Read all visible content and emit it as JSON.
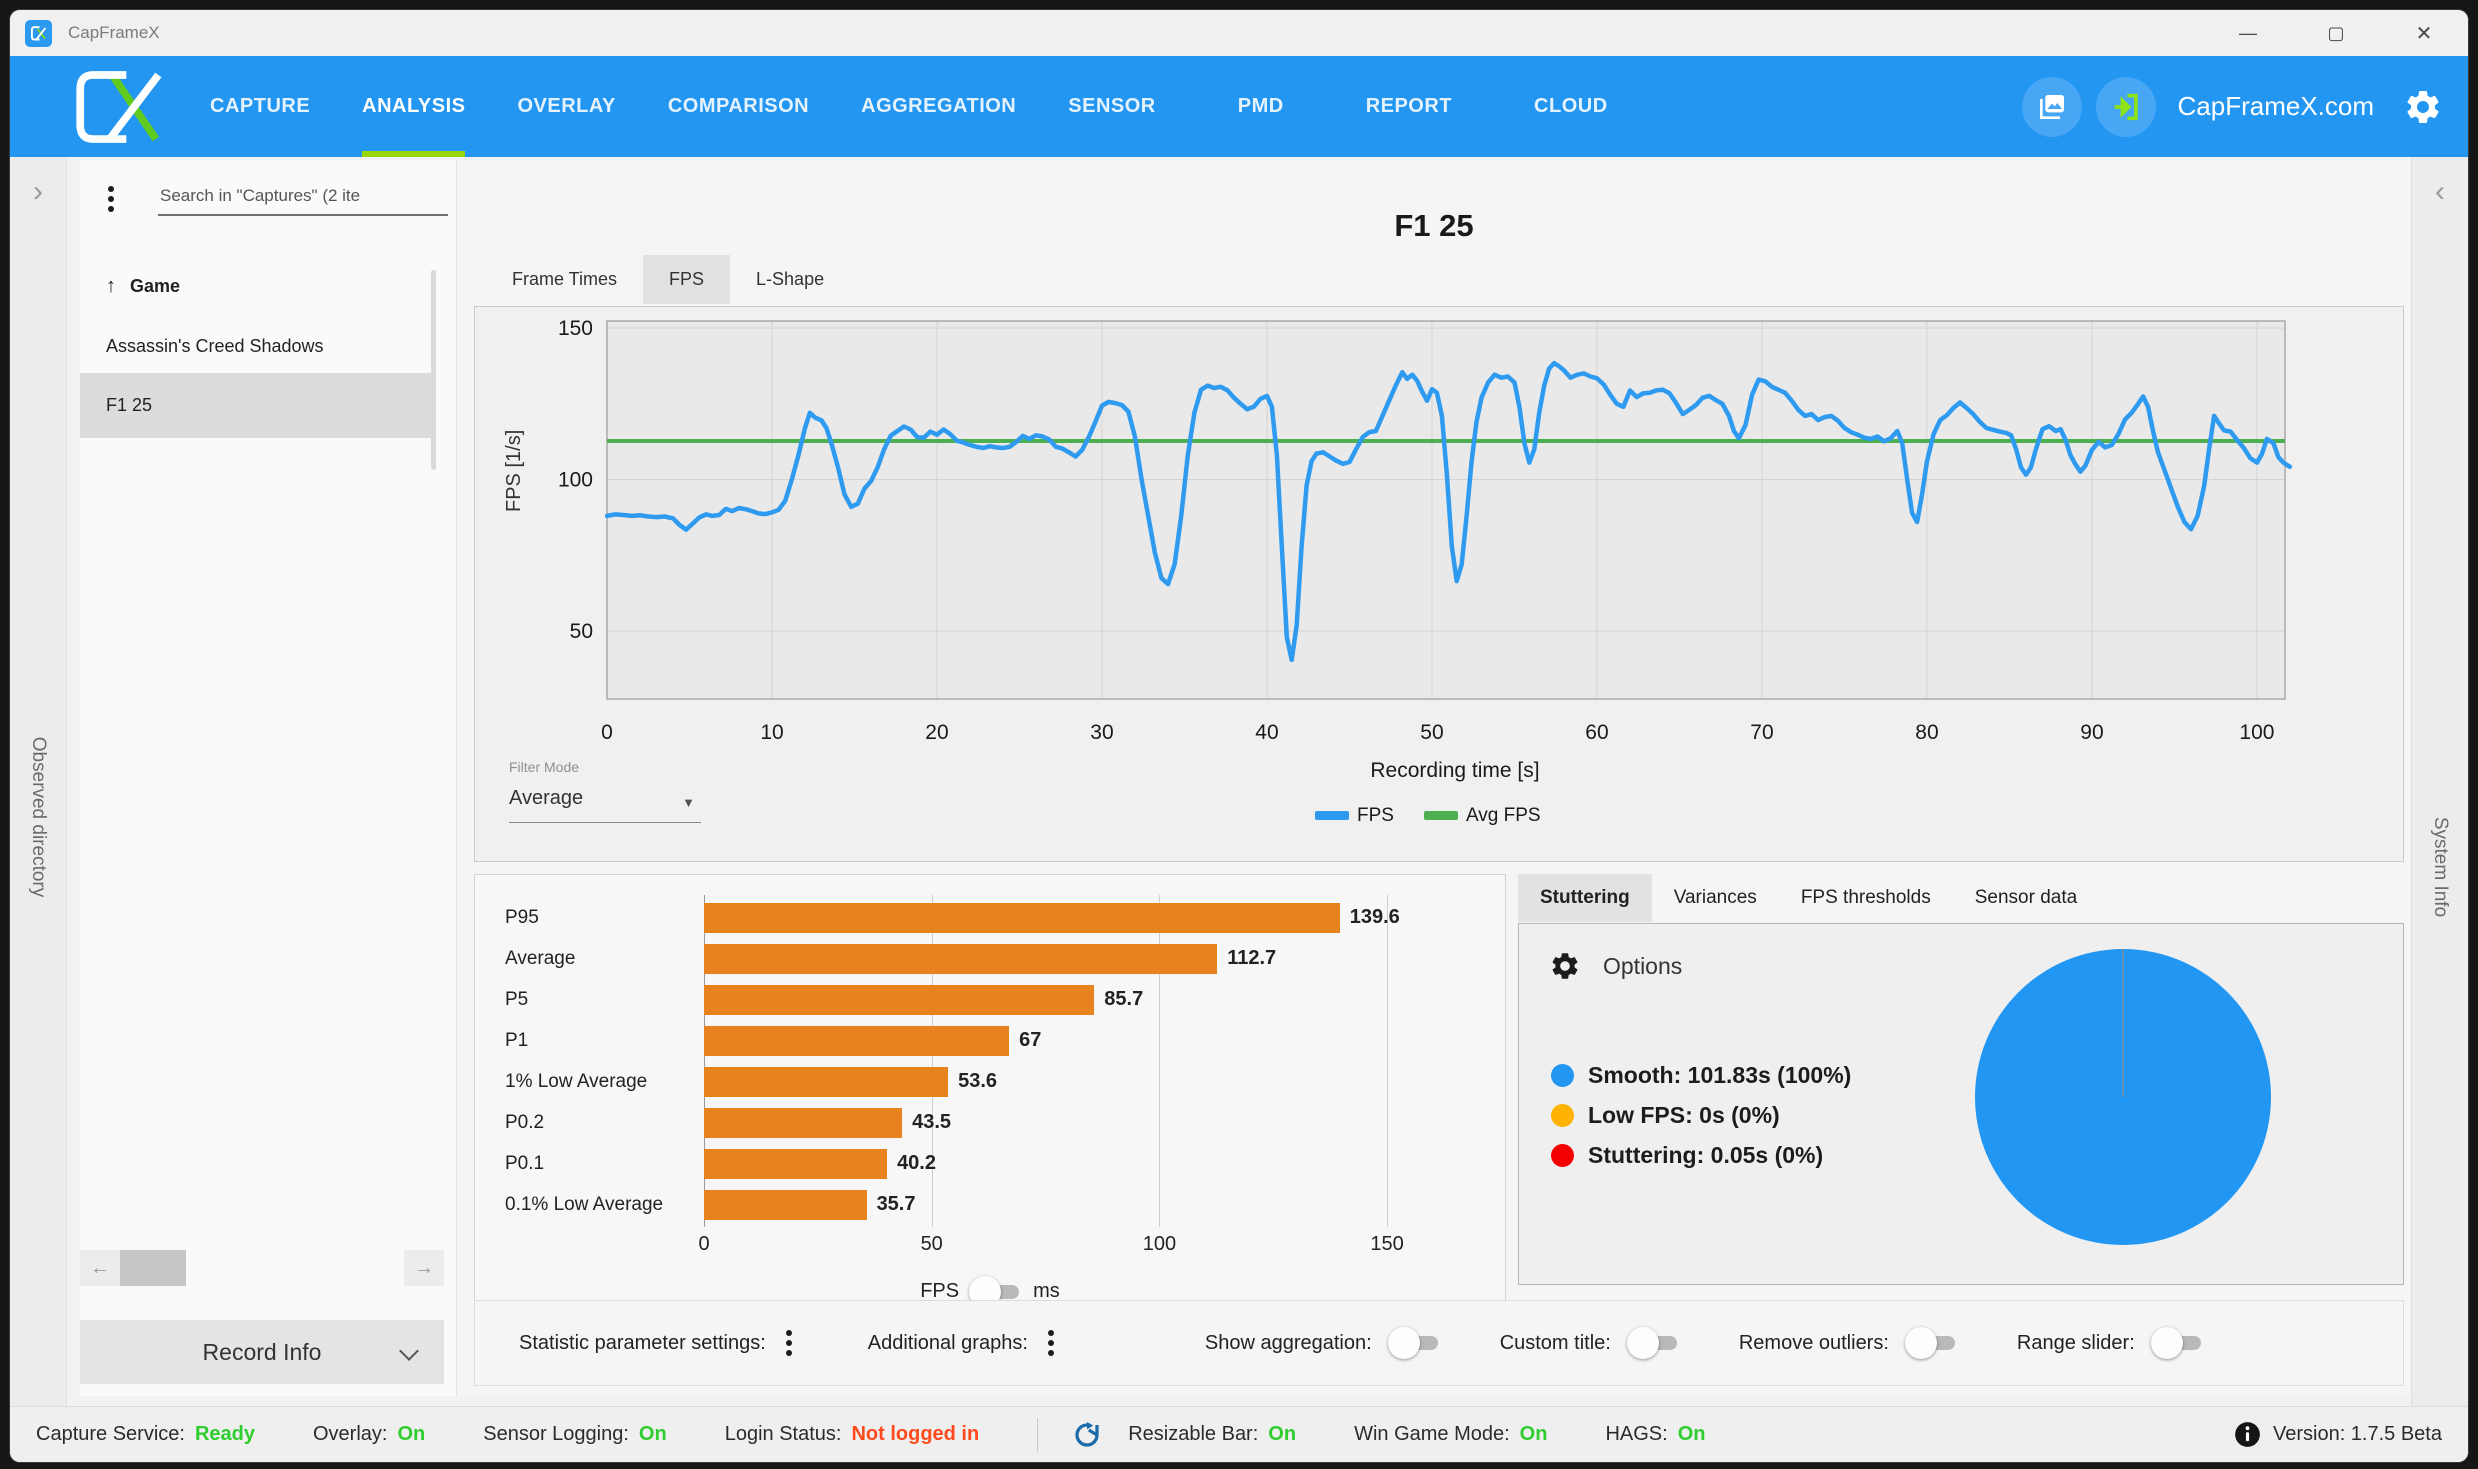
{
  "window": {
    "title": "CapFrameX",
    "controls": {
      "minimize": "—",
      "maximize": "▢",
      "close": "✕"
    }
  },
  "navbar": {
    "items": [
      "CAPTURE",
      "ANALYSIS",
      "OVERLAY",
      "COMPARISON",
      "AGGREGATION",
      "SENSOR",
      "PMD",
      "REPORT",
      "CLOUD"
    ],
    "active": "ANALYSIS",
    "site_label": "CapFrameX.com"
  },
  "rails": {
    "left_label": "Observed directory",
    "right_label": "System Info",
    "collapse_right": "›",
    "collapse_left": "‹"
  },
  "captures_panel": {
    "search_placeholder": "Search in \"Captures\" (2 ite",
    "sort_arrow": "↑",
    "sort_label": "Game",
    "items": [
      "Assassin's Creed Shadows",
      "F1 25"
    ],
    "selected": "F1 25",
    "scroll_left": "←",
    "scroll_right": "→",
    "record_info_label": "Record Info"
  },
  "analysis": {
    "title": "F1 25",
    "tabs": [
      "Frame Times",
      "FPS",
      "L-Shape"
    ],
    "active_tab": "FPS",
    "ylabel": "FPS [1/s]",
    "xlabel": "Recording time [s]",
    "filter_mode_label": "Filter Mode",
    "filter_mode_value": "Average",
    "dropdown_glyph": "▼",
    "legend": [
      {
        "label": "FPS",
        "color": "#2e9af0"
      },
      {
        "label": "Avg FPS",
        "color": "#4caf50"
      }
    ],
    "unit_toggle": {
      "left": "FPS",
      "right": "ms"
    }
  },
  "chart_data": [
    {
      "type": "line",
      "title": "FPS over recording time",
      "xlabel": "Recording time [s]",
      "ylabel": "FPS [1/s]",
      "x_ticks": [
        0,
        10,
        20,
        30,
        40,
        50,
        60,
        70,
        80,
        90,
        100
      ],
      "y_ticks": [
        50,
        100,
        150
      ],
      "x_domain": [
        0,
        101.7
      ],
      "y_domain": [
        27.6,
        152.3
      ],
      "avg_fps": 112.7,
      "line_color": "#2e9af0",
      "avg_color": "#4caf50",
      "points": [
        [
          0,
          88
        ],
        [
          0.5,
          88.5
        ],
        [
          1,
          88.3
        ],
        [
          1.5,
          88
        ],
        [
          2,
          88.2
        ],
        [
          2.5,
          87.8
        ],
        [
          3,
          87.6
        ],
        [
          3.5,
          87.8
        ],
        [
          4,
          87.2
        ],
        [
          4.4,
          85
        ],
        [
          4.8,
          83.5
        ],
        [
          5.2,
          85.5
        ],
        [
          5.6,
          87.5
        ],
        [
          6,
          88.5
        ],
        [
          6.4,
          88
        ],
        [
          6.8,
          88.3
        ],
        [
          7.2,
          90.3
        ],
        [
          7.6,
          89.6
        ],
        [
          8,
          90.6
        ],
        [
          8.4,
          90.2
        ],
        [
          8.8,
          89.6
        ],
        [
          9.2,
          88.8
        ],
        [
          9.6,
          88.6
        ],
        [
          10,
          89.2
        ],
        [
          10.4,
          90
        ],
        [
          10.8,
          93
        ],
        [
          11.2,
          100
        ],
        [
          11.6,
          108
        ],
        [
          12,
          117
        ],
        [
          12.3,
          122
        ],
        [
          12.6,
          120.5
        ],
        [
          13,
          119.5
        ],
        [
          13.3,
          117
        ],
        [
          13.6,
          112
        ],
        [
          14,
          104
        ],
        [
          14.4,
          95
        ],
        [
          14.8,
          91
        ],
        [
          15.2,
          92
        ],
        [
          15.6,
          97
        ],
        [
          16,
          99.5
        ],
        [
          16.4,
          104
        ],
        [
          16.8,
          110
        ],
        [
          17.2,
          114.5
        ],
        [
          17.6,
          116
        ],
        [
          18,
          117.5
        ],
        [
          18.4,
          116.5
        ],
        [
          18.8,
          114
        ],
        [
          19.2,
          113.8
        ],
        [
          19.6,
          115.8
        ],
        [
          20,
          114.8
        ],
        [
          20.4,
          116.5
        ],
        [
          20.8,
          115
        ],
        [
          21.2,
          112.8
        ],
        [
          21.6,
          112.2
        ],
        [
          22,
          111.4
        ],
        [
          22.4,
          110.8
        ],
        [
          22.8,
          110.4
        ],
        [
          23.2,
          111
        ],
        [
          23.6,
          110.6
        ],
        [
          24,
          110.4
        ],
        [
          24.4,
          110.8
        ],
        [
          24.8,
          112.4
        ],
        [
          25.2,
          114.4
        ],
        [
          25.6,
          113.4
        ],
        [
          26,
          114.6
        ],
        [
          26.4,
          114.2
        ],
        [
          26.8,
          113.2
        ],
        [
          27.2,
          110.8
        ],
        [
          27.6,
          110.2
        ],
        [
          28,
          109
        ],
        [
          28.4,
          107.6
        ],
        [
          28.8,
          109.8
        ],
        [
          29.2,
          114
        ],
        [
          29.6,
          119
        ],
        [
          30,
          124.4
        ],
        [
          30.4,
          125.6
        ],
        [
          30.8,
          125.2
        ],
        [
          31.2,
          124.6
        ],
        [
          31.6,
          122.4
        ],
        [
          32,
          114
        ],
        [
          32.4,
          100
        ],
        [
          32.8,
          88
        ],
        [
          33.2,
          76
        ],
        [
          33.6,
          67.5
        ],
        [
          34,
          65.5
        ],
        [
          34.4,
          72
        ],
        [
          34.8,
          88
        ],
        [
          35.2,
          108
        ],
        [
          35.6,
          122
        ],
        [
          36,
          129.6
        ],
        [
          36.4,
          131
        ],
        [
          36.8,
          130.2
        ],
        [
          37.2,
          130.6
        ],
        [
          37.6,
          129.4
        ],
        [
          38,
          127
        ],
        [
          38.4,
          125
        ],
        [
          38.8,
          123.2
        ],
        [
          39.2,
          124
        ],
        [
          39.6,
          126.6
        ],
        [
          40,
          127.6
        ],
        [
          40.3,
          124
        ],
        [
          40.6,
          108
        ],
        [
          40.9,
          78
        ],
        [
          41.2,
          48
        ],
        [
          41.5,
          40.5
        ],
        [
          41.8,
          52
        ],
        [
          42.1,
          78
        ],
        [
          42.4,
          98
        ],
        [
          42.7,
          106
        ],
        [
          43,
          108.6
        ],
        [
          43.4,
          109
        ],
        [
          43.8,
          107.6
        ],
        [
          44.2,
          106.2
        ],
        [
          44.6,
          105.2
        ],
        [
          45,
          105.8
        ],
        [
          45.4,
          110
        ],
        [
          45.8,
          114
        ],
        [
          46.2,
          115.6
        ],
        [
          46.6,
          116
        ],
        [
          47,
          121
        ],
        [
          47.4,
          126
        ],
        [
          47.8,
          131
        ],
        [
          48.2,
          135.4
        ],
        [
          48.5,
          133.2
        ],
        [
          48.8,
          134.6
        ],
        [
          49.1,
          132.6
        ],
        [
          49.4,
          129
        ],
        [
          49.7,
          126
        ],
        [
          50,
          129.8
        ],
        [
          50.3,
          128.6
        ],
        [
          50.6,
          121
        ],
        [
          50.9,
          102
        ],
        [
          51.2,
          78
        ],
        [
          51.5,
          66.5
        ],
        [
          51.8,
          72
        ],
        [
          52.1,
          88
        ],
        [
          52.4,
          106
        ],
        [
          52.7,
          119
        ],
        [
          53,
          127
        ],
        [
          53.4,
          132
        ],
        [
          53.8,
          134.6
        ],
        [
          54.2,
          133.6
        ],
        [
          54.6,
          134
        ],
        [
          55,
          132
        ],
        [
          55.3,
          124
        ],
        [
          55.6,
          112
        ],
        [
          55.9,
          105.6
        ],
        [
          56.2,
          110
        ],
        [
          56.5,
          122
        ],
        [
          56.8,
          131
        ],
        [
          57.1,
          136.6
        ],
        [
          57.4,
          138.4
        ],
        [
          57.7,
          137.4
        ],
        [
          58,
          136
        ],
        [
          58.4,
          133.6
        ],
        [
          58.8,
          134.6
        ],
        [
          59.2,
          135
        ],
        [
          59.6,
          134
        ],
        [
          60,
          133.4
        ],
        [
          60.4,
          131.4
        ],
        [
          60.8,
          128
        ],
        [
          61.2,
          125
        ],
        [
          61.6,
          124
        ],
        [
          62,
          129.4
        ],
        [
          62.4,
          127.2
        ],
        [
          62.8,
          128.4
        ],
        [
          63.2,
          128.6
        ],
        [
          63.6,
          129.4
        ],
        [
          64,
          129.6
        ],
        [
          64.4,
          128.4
        ],
        [
          64.8,
          125.2
        ],
        [
          65.2,
          121.6
        ],
        [
          65.6,
          123
        ],
        [
          66,
          124.6
        ],
        [
          66.4,
          127
        ],
        [
          66.8,
          127.6
        ],
        [
          67.2,
          126.2
        ],
        [
          67.6,
          125
        ],
        [
          68,
          121
        ],
        [
          68.3,
          116
        ],
        [
          68.6,
          113.6
        ],
        [
          69,
          118
        ],
        [
          69.4,
          128
        ],
        [
          69.8,
          133
        ],
        [
          70.2,
          132.4
        ],
        [
          70.6,
          130.6
        ],
        [
          71,
          129.6
        ],
        [
          71.4,
          128.6
        ],
        [
          71.8,
          126
        ],
        [
          72.2,
          123
        ],
        [
          72.6,
          121
        ],
        [
          73,
          121.6
        ],
        [
          73.4,
          119.6
        ],
        [
          73.8,
          120.6
        ],
        [
          74.2,
          121
        ],
        [
          74.6,
          119.4
        ],
        [
          75,
          117
        ],
        [
          75.4,
          115.6
        ],
        [
          75.8,
          114.8
        ],
        [
          76.2,
          113.8
        ],
        [
          76.6,
          113.4
        ],
        [
          77,
          114.2
        ],
        [
          77.4,
          112.6
        ],
        [
          77.8,
          113.6
        ],
        [
          78.2,
          116
        ],
        [
          78.5,
          112
        ],
        [
          78.8,
          100
        ],
        [
          79.1,
          89
        ],
        [
          79.4,
          86
        ],
        [
          79.7,
          95
        ],
        [
          80,
          106
        ],
        [
          80.4,
          115
        ],
        [
          80.8,
          119.6
        ],
        [
          81.2,
          121.2
        ],
        [
          81.6,
          123.6
        ],
        [
          82,
          125.4
        ],
        [
          82.4,
          123.6
        ],
        [
          82.8,
          121.6
        ],
        [
          83.2,
          119
        ],
        [
          83.6,
          117
        ],
        [
          84,
          116.4
        ],
        [
          84.4,
          115.8
        ],
        [
          84.8,
          115.4
        ],
        [
          85.1,
          114.6
        ],
        [
          85.4,
          110
        ],
        [
          85.7,
          104
        ],
        [
          86,
          101.6
        ],
        [
          86.3,
          104
        ],
        [
          86.6,
          110
        ],
        [
          87,
          116.6
        ],
        [
          87.4,
          117.6
        ],
        [
          87.8,
          116
        ],
        [
          88.1,
          116.6
        ],
        [
          88.4,
          113
        ],
        [
          88.7,
          108
        ],
        [
          89,
          105
        ],
        [
          89.3,
          102.6
        ],
        [
          89.6,
          104.6
        ],
        [
          90,
          109.8
        ],
        [
          90.4,
          112.4
        ],
        [
          90.8,
          110.6
        ],
        [
          91.2,
          111.4
        ],
        [
          91.6,
          115
        ],
        [
          92,
          119.8
        ],
        [
          92.4,
          122
        ],
        [
          92.8,
          125
        ],
        [
          93.1,
          127.4
        ],
        [
          93.4,
          124
        ],
        [
          93.7,
          116
        ],
        [
          94,
          109
        ],
        [
          94.4,
          103
        ],
        [
          94.8,
          97
        ],
        [
          95.2,
          91
        ],
        [
          95.6,
          86
        ],
        [
          96,
          83.6
        ],
        [
          96.4,
          88
        ],
        [
          96.8,
          98
        ],
        [
          97.1,
          110
        ],
        [
          97.4,
          121
        ],
        [
          97.7,
          118.6
        ],
        [
          98,
          116.2
        ],
        [
          98.4,
          115.8
        ],
        [
          98.8,
          113
        ],
        [
          99.2,
          110.4
        ],
        [
          99.6,
          107
        ],
        [
          100,
          105.6
        ],
        [
          100.3,
          108.4
        ],
        [
          100.6,
          113.4
        ],
        [
          101,
          112
        ],
        [
          101.3,
          107.4
        ],
        [
          101.6,
          105.6
        ],
        [
          102,
          104.2
        ]
      ]
    },
    {
      "type": "bar",
      "title": "FPS percentile statistics",
      "categories": [
        "P95",
        "Average",
        "P5",
        "P1",
        "1% Low Average",
        "P0.2",
        "P0.1",
        "0.1% Low Average"
      ],
      "values": [
        139.6,
        112.7,
        85.7,
        67,
        53.6,
        43.5,
        40.2,
        35.7
      ],
      "value_labels": [
        "139.6",
        "112.7",
        "85.7",
        "67",
        "53.6",
        "43.5",
        "40.2",
        "35.7"
      ],
      "x_ticks": [
        0,
        50,
        100,
        150
      ],
      "xlim": [
        0,
        168
      ],
      "bar_color": "#e8821e",
      "unit": "FPS"
    },
    {
      "type": "pie",
      "title": "Stuttering share",
      "slices": [
        {
          "label": "Smooth",
          "seconds": 101.83,
          "percent": 100,
          "color": "#2196f3"
        },
        {
          "label": "Low FPS",
          "seconds": 0,
          "percent": 0,
          "color": "#ffb300"
        },
        {
          "label": "Stuttering",
          "seconds": 0.05,
          "percent": 0,
          "color": "#f50000"
        }
      ]
    }
  ],
  "stutter_panel": {
    "tabs": [
      "Stuttering",
      "Variances",
      "FPS thresholds",
      "Sensor data"
    ],
    "active_tab": "Stuttering",
    "options_label": "Options",
    "legend": [
      {
        "label": "Smooth:",
        "value": "101.83s (100%)",
        "color": "#2196f3"
      },
      {
        "label": "Low FPS:",
        "value": "0s (0%)",
        "color": "#ffb300"
      },
      {
        "label": "Stuttering:",
        "value": "0.05s (0%)",
        "color": "#f50000"
      }
    ]
  },
  "toolbar": {
    "items": [
      {
        "label": "Statistic parameter settings:",
        "control": "menu"
      },
      {
        "label": "Additional graphs:",
        "control": "menu"
      },
      {
        "label": "Show aggregation:",
        "control": "toggle",
        "state": "off"
      },
      {
        "label": "Custom title:",
        "control": "toggle",
        "state": "off"
      },
      {
        "label": "Remove outliers:",
        "control": "toggle",
        "state": "off"
      },
      {
        "label": "Range slider:",
        "control": "toggle",
        "state": "off"
      }
    ]
  },
  "statusbar": {
    "items": [
      {
        "label": "Capture Service:",
        "value": "Ready",
        "color": "#2fcd2f"
      },
      {
        "label": "Overlay:",
        "value": "On",
        "color": "#2fcd2f"
      },
      {
        "label": "Sensor Logging:",
        "value": "On",
        "color": "#2fcd2f"
      },
      {
        "label": "Login Status:",
        "value": "Not logged in",
        "color": "#fe4a1d"
      },
      {
        "label": "Resizable Bar:",
        "value": "On",
        "color": "#2fcd2f",
        "divider_before": true,
        "icon": "refresh"
      },
      {
        "label": "Win Game Mode:",
        "value": "On",
        "color": "#2fcd2f"
      },
      {
        "label": "HAGS:",
        "value": "On",
        "color": "#2fcd2f"
      }
    ],
    "version_label": "Version: 1.7.5 Beta"
  }
}
